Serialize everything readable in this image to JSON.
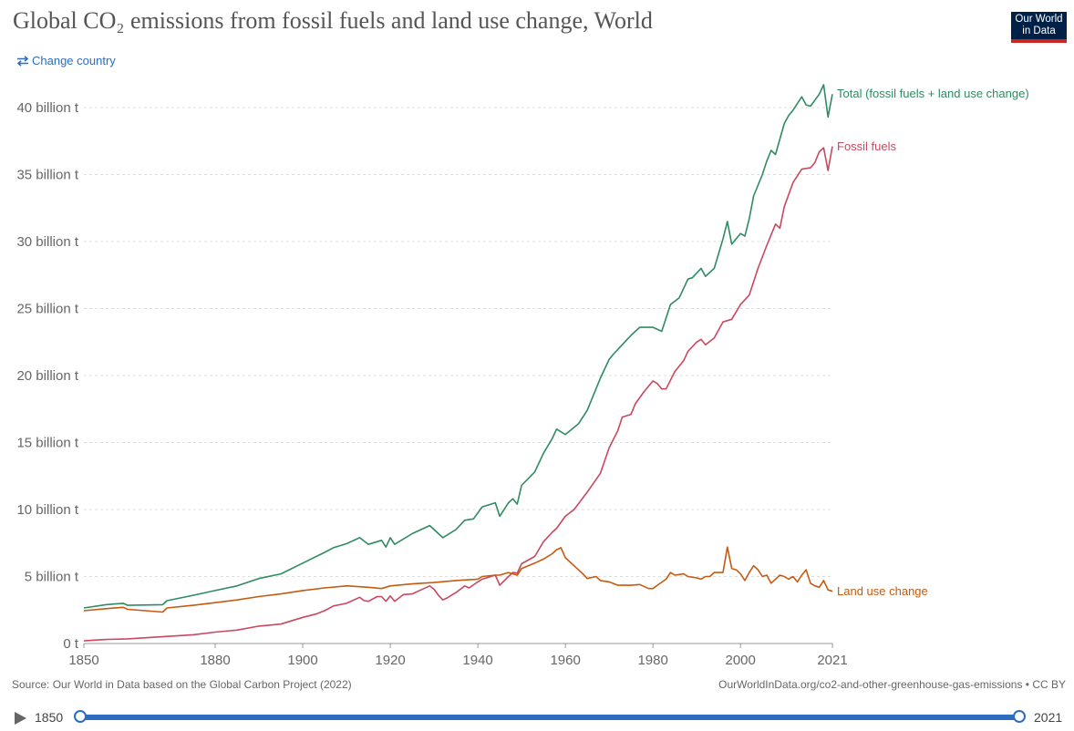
{
  "header": {
    "title": "Global CO₂ emissions from fossil fuels and land use change, World",
    "logo_line1": "Our World",
    "logo_line2": "in Data",
    "change_country": "Change country"
  },
  "footer": {
    "source": "Source: Our World in Data based on the Global Carbon Project (2022)",
    "url": "OurWorldInData.org/co2-and-other-greenhouse-gas-emissions • CC BY"
  },
  "timeline": {
    "start_label": "1850",
    "end_label": "2021"
  },
  "colors": {
    "total": "#2e8b62",
    "fossil": "#c8485f",
    "landuse": "#c65a10",
    "accent": "#2d6cc0",
    "logo_bg": "#002147"
  },
  "chart_data": {
    "type": "line",
    "title": "Global CO₂ emissions from fossil fuels and land use change, World",
    "xlim": [
      1850,
      2021
    ],
    "ylim": [
      0,
      42
    ],
    "x_ticks": [
      1850,
      1880,
      1900,
      1920,
      1940,
      1960,
      1980,
      2000,
      2021
    ],
    "x_tick_labels": [
      "1850",
      "1880",
      "1900",
      "1920",
      "1940",
      "1960",
      "1980",
      "2000",
      "2021"
    ],
    "y_ticks": [
      0,
      5,
      10,
      15,
      20,
      25,
      30,
      35,
      40
    ],
    "y_tick_labels": [
      "0 t",
      "5 billion t",
      "10 billion t",
      "15 billion t",
      "20 billion t",
      "25 billion t",
      "30 billion t",
      "35 billion t",
      "40 billion t"
    ],
    "grid": true,
    "legend": "end-of-line labels",
    "series": [
      {
        "name": "Total (fossil fuels + land use change)",
        "key": "total",
        "points": [
          [
            1850,
            2.65
          ],
          [
            1855,
            2.9
          ],
          [
            1859,
            3.0
          ],
          [
            1860,
            2.85
          ],
          [
            1868,
            2.9
          ],
          [
            1869,
            3.2
          ],
          [
            1875,
            3.6
          ],
          [
            1880,
            3.95
          ],
          [
            1885,
            4.3
          ],
          [
            1890,
            4.85
          ],
          [
            1895,
            5.2
          ],
          [
            1900,
            6.0
          ],
          [
            1905,
            6.8
          ],
          [
            1907,
            7.15
          ],
          [
            1910,
            7.45
          ],
          [
            1913,
            7.9
          ],
          [
            1915,
            7.4
          ],
          [
            1918,
            7.7
          ],
          [
            1919,
            7.2
          ],
          [
            1920,
            7.9
          ],
          [
            1921,
            7.4
          ],
          [
            1925,
            8.2
          ],
          [
            1929,
            8.8
          ],
          [
            1932,
            7.9
          ],
          [
            1935,
            8.5
          ],
          [
            1937,
            9.2
          ],
          [
            1939,
            9.3
          ],
          [
            1941,
            10.2
          ],
          [
            1944,
            10.5
          ],
          [
            1945,
            9.5
          ],
          [
            1947,
            10.5
          ],
          [
            1948,
            10.8
          ],
          [
            1949,
            10.4
          ],
          [
            1950,
            11.8
          ],
          [
            1953,
            12.8
          ],
          [
            1955,
            14.2
          ],
          [
            1957,
            15.3
          ],
          [
            1958,
            16.0
          ],
          [
            1960,
            15.6
          ],
          [
            1963,
            16.4
          ],
          [
            1965,
            17.4
          ],
          [
            1968,
            19.8
          ],
          [
            1970,
            21.2
          ],
          [
            1971,
            21.6
          ],
          [
            1973,
            22.3
          ],
          [
            1975,
            23.0
          ],
          [
            1977,
            23.6
          ],
          [
            1980,
            23.6
          ],
          [
            1982,
            23.3
          ],
          [
            1984,
            25.3
          ],
          [
            1986,
            25.8
          ],
          [
            1988,
            27.2
          ],
          [
            1989,
            27.3
          ],
          [
            1991,
            28.0
          ],
          [
            1992,
            27.4
          ],
          [
            1994,
            28.0
          ],
          [
            1996,
            30.2
          ],
          [
            1997,
            31.5
          ],
          [
            1998,
            29.8
          ],
          [
            2000,
            30.6
          ],
          [
            2001,
            30.4
          ],
          [
            2002,
            31.7
          ],
          [
            2003,
            33.4
          ],
          [
            2005,
            35.0
          ],
          [
            2006,
            36.0
          ],
          [
            2007,
            36.8
          ],
          [
            2008,
            36.5
          ],
          [
            2010,
            38.8
          ],
          [
            2011,
            39.4
          ],
          [
            2012,
            39.8
          ],
          [
            2014,
            40.8
          ],
          [
            2015,
            40.2
          ],
          [
            2016,
            40.1
          ],
          [
            2018,
            41.0
          ],
          [
            2019,
            41.7
          ],
          [
            2020,
            39.3
          ],
          [
            2021,
            41.0
          ]
        ]
      },
      {
        "name": "Fossil fuels",
        "key": "fossil",
        "points": [
          [
            1850,
            0.2
          ],
          [
            1855,
            0.3
          ],
          [
            1860,
            0.35
          ],
          [
            1865,
            0.45
          ],
          [
            1870,
            0.55
          ],
          [
            1875,
            0.65
          ],
          [
            1880,
            0.85
          ],
          [
            1885,
            1.0
          ],
          [
            1890,
            1.3
          ],
          [
            1895,
            1.45
          ],
          [
            1900,
            1.95
          ],
          [
            1903,
            2.2
          ],
          [
            1905,
            2.45
          ],
          [
            1907,
            2.8
          ],
          [
            1910,
            3.0
          ],
          [
            1913,
            3.45
          ],
          [
            1914,
            3.2
          ],
          [
            1915,
            3.15
          ],
          [
            1917,
            3.5
          ],
          [
            1918,
            3.5
          ],
          [
            1919,
            3.15
          ],
          [
            1920,
            3.55
          ],
          [
            1921,
            3.15
          ],
          [
            1923,
            3.65
          ],
          [
            1925,
            3.7
          ],
          [
            1927,
            4.0
          ],
          [
            1929,
            4.3
          ],
          [
            1930,
            4.05
          ],
          [
            1931,
            3.6
          ],
          [
            1932,
            3.25
          ],
          [
            1933,
            3.4
          ],
          [
            1935,
            3.8
          ],
          [
            1937,
            4.3
          ],
          [
            1938,
            4.15
          ],
          [
            1940,
            4.6
          ],
          [
            1941,
            4.8
          ],
          [
            1943,
            5.0
          ],
          [
            1944,
            5.1
          ],
          [
            1945,
            4.35
          ],
          [
            1947,
            5.0
          ],
          [
            1948,
            5.3
          ],
          [
            1949,
            5.25
          ],
          [
            1950,
            5.95
          ],
          [
            1953,
            6.5
          ],
          [
            1955,
            7.6
          ],
          [
            1957,
            8.3
          ],
          [
            1958,
            8.6
          ],
          [
            1960,
            9.5
          ],
          [
            1962,
            10.0
          ],
          [
            1965,
            11.3
          ],
          [
            1968,
            12.7
          ],
          [
            1970,
            14.6
          ],
          [
            1972,
            15.9
          ],
          [
            1973,
            16.9
          ],
          [
            1975,
            17.1
          ],
          [
            1976,
            17.9
          ],
          [
            1978,
            18.8
          ],
          [
            1980,
            19.6
          ],
          [
            1981,
            19.4
          ],
          [
            1982,
            19.0
          ],
          [
            1983,
            19.0
          ],
          [
            1985,
            20.3
          ],
          [
            1987,
            21.1
          ],
          [
            1988,
            21.8
          ],
          [
            1990,
            22.5
          ],
          [
            1991,
            22.7
          ],
          [
            1992,
            22.3
          ],
          [
            1994,
            22.8
          ],
          [
            1996,
            24.0
          ],
          [
            1998,
            24.2
          ],
          [
            2000,
            25.3
          ],
          [
            2002,
            26.0
          ],
          [
            2004,
            28.0
          ],
          [
            2006,
            29.7
          ],
          [
            2008,
            31.3
          ],
          [
            2009,
            31.0
          ],
          [
            2010,
            32.6
          ],
          [
            2012,
            34.4
          ],
          [
            2014,
            35.4
          ],
          [
            2016,
            35.5
          ],
          [
            2017,
            35.9
          ],
          [
            2018,
            36.7
          ],
          [
            2019,
            37.0
          ],
          [
            2020,
            35.3
          ],
          [
            2021,
            37.1
          ]
        ]
      },
      {
        "name": "Land use change",
        "key": "landuse",
        "points": [
          [
            1850,
            2.45
          ],
          [
            1855,
            2.6
          ],
          [
            1859,
            2.7
          ],
          [
            1860,
            2.55
          ],
          [
            1868,
            2.35
          ],
          [
            1869,
            2.65
          ],
          [
            1875,
            2.85
          ],
          [
            1880,
            3.05
          ],
          [
            1885,
            3.25
          ],
          [
            1890,
            3.5
          ],
          [
            1895,
            3.7
          ],
          [
            1900,
            3.95
          ],
          [
            1905,
            4.15
          ],
          [
            1910,
            4.3
          ],
          [
            1915,
            4.2
          ],
          [
            1918,
            4.1
          ],
          [
            1920,
            4.3
          ],
          [
            1925,
            4.45
          ],
          [
            1930,
            4.55
          ],
          [
            1935,
            4.7
          ],
          [
            1940,
            4.8
          ],
          [
            1941,
            5.0
          ],
          [
            1944,
            5.1
          ],
          [
            1945,
            5.1
          ],
          [
            1947,
            5.3
          ],
          [
            1948,
            5.2
          ],
          [
            1949,
            5.1
          ],
          [
            1950,
            5.6
          ],
          [
            1953,
            6.0
          ],
          [
            1955,
            6.3
          ],
          [
            1957,
            6.7
          ],
          [
            1958,
            7.0
          ],
          [
            1959,
            7.15
          ],
          [
            1960,
            6.4
          ],
          [
            1962,
            5.8
          ],
          [
            1964,
            5.2
          ],
          [
            1965,
            4.85
          ],
          [
            1967,
            5.0
          ],
          [
            1968,
            4.7
          ],
          [
            1970,
            4.6
          ],
          [
            1972,
            4.35
          ],
          [
            1975,
            4.35
          ],
          [
            1977,
            4.4
          ],
          [
            1979,
            4.1
          ],
          [
            1980,
            4.1
          ],
          [
            1981,
            4.35
          ],
          [
            1983,
            4.8
          ],
          [
            1984,
            5.3
          ],
          [
            1985,
            5.1
          ],
          [
            1987,
            5.2
          ],
          [
            1988,
            5.0
          ],
          [
            1990,
            4.9
          ],
          [
            1991,
            4.8
          ],
          [
            1992,
            5.0
          ],
          [
            1993,
            5.0
          ],
          [
            1994,
            5.3
          ],
          [
            1996,
            5.3
          ],
          [
            1997,
            7.2
          ],
          [
            1998,
            5.6
          ],
          [
            1999,
            5.5
          ],
          [
            2000,
            5.2
          ],
          [
            2001,
            4.7
          ],
          [
            2002,
            5.3
          ],
          [
            2003,
            5.8
          ],
          [
            2004,
            5.5
          ],
          [
            2005,
            5.0
          ],
          [
            2006,
            5.1
          ],
          [
            2007,
            4.5
          ],
          [
            2008,
            4.8
          ],
          [
            2009,
            5.1
          ],
          [
            2010,
            5.0
          ],
          [
            2011,
            4.8
          ],
          [
            2012,
            5.0
          ],
          [
            2013,
            4.6
          ],
          [
            2014,
            5.1
          ],
          [
            2015,
            5.5
          ],
          [
            2016,
            4.5
          ],
          [
            2017,
            4.3
          ],
          [
            2018,
            4.2
          ],
          [
            2019,
            4.7
          ],
          [
            2020,
            4.0
          ],
          [
            2021,
            3.9
          ]
        ]
      }
    ]
  }
}
